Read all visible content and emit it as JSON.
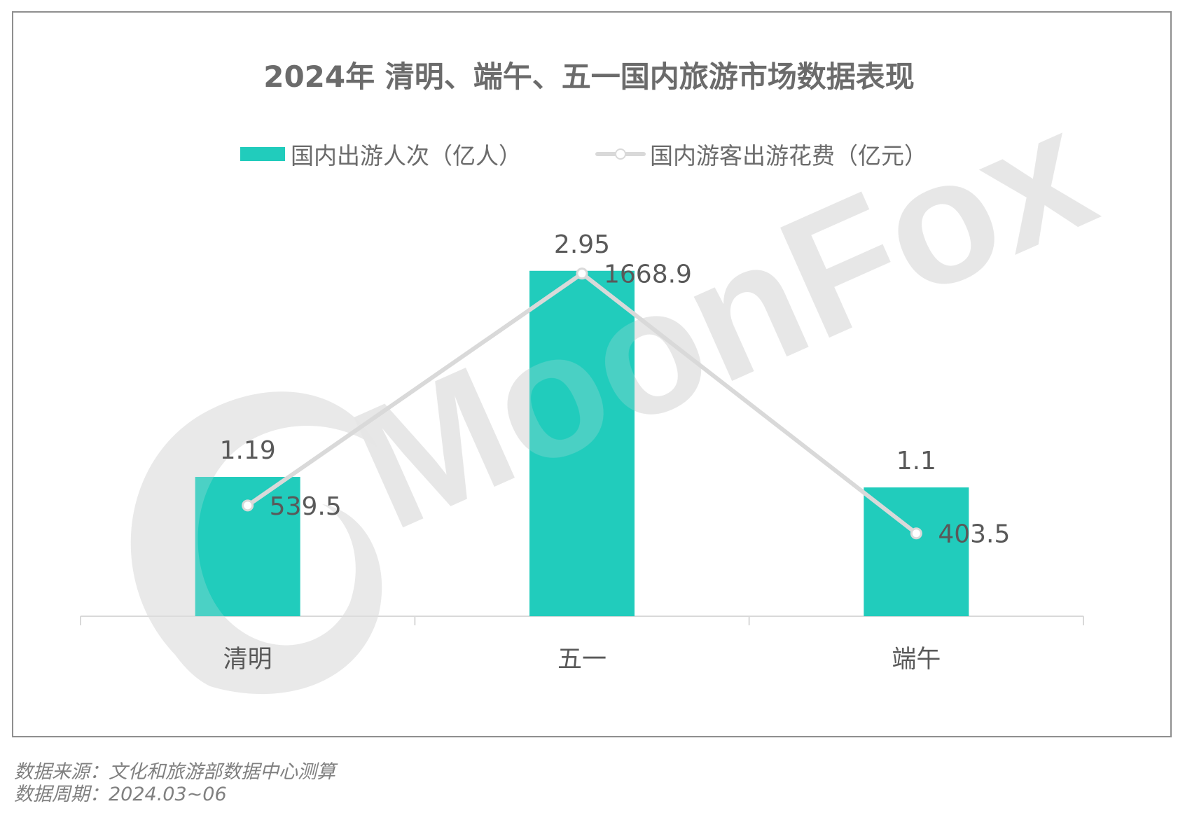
{
  "title": "2024年 清明、端午、五一国内旅游市场数据表现",
  "legend": [
    {
      "label": "国内出游人次（亿人）",
      "type": "bar",
      "color": "#21ccbc"
    },
    {
      "label": "国内游客出游花费（亿元）",
      "type": "line",
      "color": "#d9d9d9"
    }
  ],
  "watermark": "MoonFox",
  "footer": {
    "source": "数据来源：文化和旅游部数据中心测算",
    "period": "数据周期：2024.03~06"
  },
  "colors": {
    "bar": "#21ccbc",
    "line": "#d9d9d9",
    "text": "#595959",
    "axis": "#d9d9d9",
    "watermark": "#e6e6e6"
  },
  "chart_data": {
    "type": "bar",
    "title": "2024年 清明、端午、五一国内旅游市场数据表现",
    "categories": [
      "清明",
      "五一",
      "端午"
    ],
    "series": [
      {
        "name": "国内出游人次（亿人）",
        "type": "bar",
        "values": [
          1.19,
          2.95,
          1.1
        ],
        "labels": [
          "1.19",
          "2.95",
          "1.1"
        ]
      },
      {
        "name": "国内游客出游花费（亿元）",
        "type": "line",
        "values": [
          539.5,
          1668.9,
          403.5
        ],
        "labels": [
          "539.5",
          "1668.9",
          "403.5"
        ]
      }
    ],
    "xlabel": "",
    "ylabel": "",
    "grid": false,
    "legend_position": "top",
    "axes": {
      "y_visible": false,
      "secondary_y_visible": false
    }
  }
}
